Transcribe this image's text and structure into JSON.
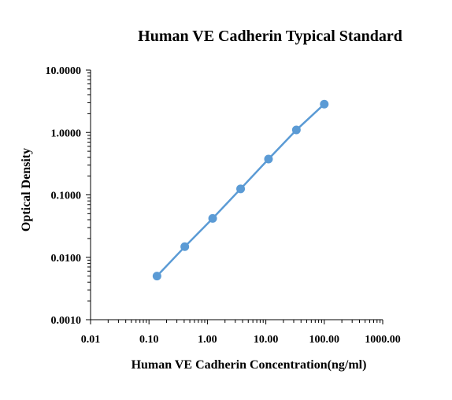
{
  "chart_data": {
    "type": "line",
    "title": "Human VE Cadherin Typical Standard",
    "xlabel": "Human VE Cadherin Concentration(ng/ml)",
    "ylabel": "Optical Density",
    "x_scale": "log",
    "y_scale": "log",
    "xlim": [
      0.01,
      1000
    ],
    "ylim": [
      0.001,
      10
    ],
    "x_ticks": [
      "0.01",
      "0.10",
      "1.00",
      "10.00",
      "100.00",
      "1000.00"
    ],
    "y_ticks": [
      "0.0010",
      "0.0100",
      "0.1000",
      "1.0000",
      "10.0000"
    ],
    "grid": false,
    "series": [
      {
        "color": "#5b9bd5",
        "x": [
          0.137,
          0.41,
          1.23,
          3.7,
          11.1,
          33.3,
          100
        ],
        "y": [
          0.005,
          0.0148,
          0.042,
          0.125,
          0.375,
          1.1,
          2.85
        ]
      }
    ]
  }
}
